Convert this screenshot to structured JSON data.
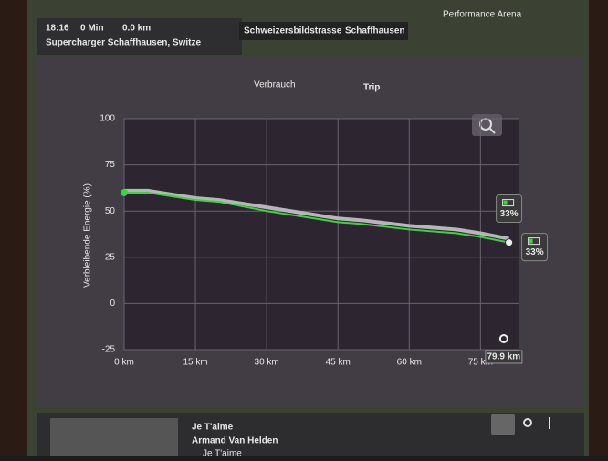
{
  "nav": {
    "time": "18:16",
    "duration": "0 Min",
    "distance": "0.0 km",
    "destination": "Supercharger Schaffhausen, Switze",
    "streets": [
      "Schweizersbildstrasse",
      "Schaffhausen"
    ],
    "place": "Performance Arena"
  },
  "tabs": [
    "Verbrauch",
    "Trip"
  ],
  "chart_data": {
    "type": "line",
    "ylabel": "Verbleibende Energie (%)",
    "xlim": [
      0,
      83
    ],
    "ylim": [
      -25,
      100
    ],
    "yticks": [
      -25,
      0,
      25,
      50,
      75,
      100
    ],
    "xticks": [
      {
        "value": 0,
        "label": "0 km"
      },
      {
        "value": 15,
        "label": "15 km"
      },
      {
        "value": 30,
        "label": "30 km"
      },
      {
        "value": 45,
        "label": "45 km"
      },
      {
        "value": 60,
        "label": "60 km"
      },
      {
        "value": 75,
        "label": "75 km"
      }
    ],
    "grid": true,
    "end_marker": {
      "value": 79.9,
      "label": "79.9 km"
    },
    "series": [
      {
        "color": "#39d63c",
        "x": [
          0,
          5,
          10,
          15,
          20,
          30,
          40,
          45,
          50,
          60,
          70,
          75,
          81
        ],
        "values": [
          60,
          60,
          58,
          56,
          55,
          50,
          46,
          44,
          43,
          40,
          38,
          36,
          33
        ]
      },
      {
        "color": "#b9b3bd",
        "x": [
          0,
          5,
          10,
          15,
          20,
          30,
          40,
          45,
          50,
          60,
          70,
          75,
          81
        ],
        "values": [
          61,
          61,
          59,
          57,
          56,
          52,
          48,
          46,
          45,
          42,
          40,
          38,
          35
        ]
      }
    ],
    "annotations": [
      {
        "value": 33,
        "label": "33%"
      },
      {
        "value": 33,
        "label": "33%"
      }
    ]
  },
  "media": {
    "title": "Je T'aime",
    "artist": "Armand Van Helden",
    "album": "Je T'aime"
  }
}
